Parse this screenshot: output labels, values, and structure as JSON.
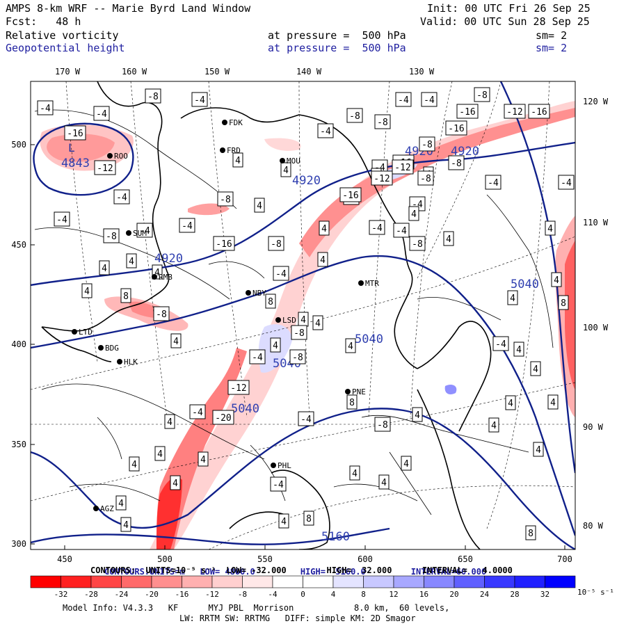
{
  "header": {
    "model": "AMPS 8-km WRF -- Marie Byrd Land Window",
    "init": "Init: 00 UTC Fri 26 Sep 25",
    "fcst": "Fcst:   48 h",
    "valid": "Valid: 00 UTC Sun 28 Sep 25",
    "field1": "Relative vorticity",
    "field1_level": "at pressure =  500 hPa",
    "field1_sm": "sm= 2",
    "field2": "Geopotential height",
    "field2_level": "at pressure =  500 hPa",
    "field2_sm": "sm= 2"
  },
  "axes": {
    "top_lon": [
      "170 W",
      "160 W",
      "150 W",
      "140 W",
      "130 W"
    ],
    "right_lon": [
      "120 W",
      "110 W",
      "100 W",
      "90 W",
      "80 W"
    ],
    "left_y": [
      "500",
      "450",
      "400",
      "350",
      "300"
    ],
    "bottom_x": [
      "450",
      "500",
      "550",
      "600",
      "650",
      "700"
    ]
  },
  "contour_info": {
    "height_line": {
      "label": "CONTOURS:",
      "units": "UNITS=m",
      "low": "LOW=",
      "low_val": "4800.0",
      "high": "HIGH=",
      "high_val": "5160.0",
      "interval": "INTERVAL=",
      "interval_val": "60.000"
    },
    "vort_line": "CONTOURS:  UNITS=10⁻⁵ s⁻¹  LOW= -32.000        HIGH=  32.000      INTERVAL=   4.0000"
  },
  "colorbar": {
    "labels": [
      "-32",
      "-28",
      "-24",
      "-20",
      "-16",
      "-12",
      "-8",
      "-4",
      "0",
      "4",
      "8",
      "12",
      "16",
      "20",
      "24",
      "28",
      "32"
    ],
    "units": "10⁻⁵ s⁻¹",
    "colors": [
      "#ff0000",
      "#ff2020",
      "#ff4545",
      "#ff6a6a",
      "#ff8f8f",
      "#ffb0b0",
      "#ffcfcf",
      "#ffe8e8",
      "#ffffff",
      "#ffffff",
      "#e4e4ff",
      "#c8c8ff",
      "#a8a8ff",
      "#8888ff",
      "#6060ff",
      "#3838ff",
      "#1010ff"
    ]
  },
  "footer": {
    "line1": "Model Info: V4.3.3   KF      MYJ PBL  Morrison            8.0 km,  60 levels,",
    "line2": "LW: RRTM SW: RRTMG   DIFF: simple KM: 2D Smagor"
  },
  "stations": [
    "FDK",
    "FRD",
    "MOU",
    "ROO",
    "SUM",
    "RMB",
    "NBY",
    "MTR",
    "LSD",
    "LTD",
    "BDG",
    "HLK",
    "PNE",
    "PHL",
    "AGZ"
  ],
  "height_labels": [
    "4843",
    "4920",
    "4920",
    "4920",
    "4920",
    "5040",
    "5040",
    "5040",
    "5040",
    "5160"
  ],
  "low_marker": "L",
  "vort_labels": [
    "-8",
    "-4",
    "-4",
    "-4",
    "-8",
    "-8",
    "-4",
    "-4",
    "-8",
    "-16",
    "-12",
    "-16",
    "-4",
    "-8",
    "-16",
    "-12",
    "4",
    "4",
    "-4",
    "4",
    "-8",
    "-4",
    "-8",
    "-4",
    "-4",
    "-8",
    "-16",
    "4",
    "-4",
    "4",
    "-16",
    "-16",
    "-4",
    "-8",
    "4",
    "-8",
    "-4",
    "-4",
    "-4",
    "-12",
    "-16",
    "-12",
    "-4",
    "4",
    "-8",
    "-4",
    "4",
    "4",
    "4",
    "4",
    "4",
    "4",
    "4",
    "8",
    "-8",
    "4",
    "-4",
    "8",
    "4",
    "4",
    "-8",
    "4",
    "4",
    "-4",
    "-8",
    "-12",
    "-4",
    "-20",
    "4",
    "4",
    "4",
    "4",
    "4",
    "4",
    "4",
    "4",
    "8",
    "-4",
    "4",
    "4",
    "4",
    "-8",
    "8",
    "-4",
    "4",
    "4",
    "4",
    "4",
    "4",
    "-4",
    "8",
    "4",
    "4",
    "4",
    "4",
    "8"
  ]
}
